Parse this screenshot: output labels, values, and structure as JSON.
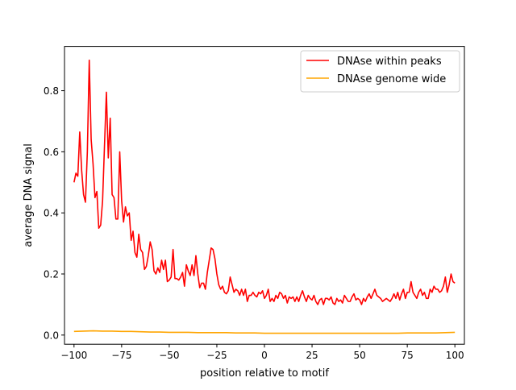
{
  "chart_data": {
    "type": "line",
    "title": "",
    "xlabel": "position relative to motif",
    "ylabel": "average DNA signal",
    "xlim": [
      -105,
      105
    ],
    "ylim": [
      -0.03,
      0.945
    ],
    "xticks": [
      -100,
      -75,
      -50,
      -25,
      0,
      25,
      50,
      75,
      100
    ],
    "xtick_labels": [
      "−100",
      "−75",
      "−50",
      "−25",
      "0",
      "25",
      "50",
      "75",
      "100"
    ],
    "yticks": [
      0.0,
      0.2,
      0.4,
      0.6,
      0.8
    ],
    "ytick_labels": [
      "0.0",
      "0.2",
      "0.4",
      "0.6",
      "0.8"
    ],
    "grid": false,
    "legend_position": "top-right",
    "series": [
      {
        "name": "DNAse within peaks",
        "color": "#ff0000",
        "x": [
          -100,
          -99,
          -98,
          -97,
          -96,
          -95,
          -94,
          -93,
          -92,
          -91,
          -90,
          -89,
          -88,
          -87,
          -86,
          -85,
          -84,
          -83,
          -82,
          -81,
          -80,
          -79,
          -78,
          -77,
          -76,
          -75,
          -74,
          -73,
          -72,
          -71,
          -70,
          -69,
          -68,
          -67,
          -66,
          -65,
          -64,
          -63,
          -62,
          -61,
          -60,
          -59,
          -58,
          -57,
          -56,
          -55,
          -54,
          -53,
          -52,
          -51,
          -50,
          -49,
          -48,
          -47,
          -46,
          -45,
          -44,
          -43,
          -42,
          -41,
          -40,
          -39,
          -38,
          -37,
          -36,
          -35,
          -34,
          -33,
          -32,
          -31,
          -30,
          -29,
          -28,
          -27,
          -26,
          -25,
          -24,
          -23,
          -22,
          -21,
          -20,
          -19,
          -18,
          -17,
          -16,
          -15,
          -14,
          -13,
          -12,
          -11,
          -10,
          -9,
          -8,
          -7,
          -6,
          -5,
          -4,
          -3,
          -2,
          -1,
          0,
          1,
          2,
          3,
          4,
          5,
          6,
          7,
          8,
          9,
          10,
          11,
          12,
          13,
          14,
          15,
          16,
          17,
          18,
          19,
          20,
          21,
          22,
          23,
          24,
          25,
          26,
          27,
          28,
          29,
          30,
          31,
          32,
          33,
          34,
          35,
          36,
          37,
          38,
          39,
          40,
          41,
          42,
          43,
          44,
          45,
          46,
          47,
          48,
          49,
          50,
          51,
          52,
          53,
          54,
          55,
          56,
          57,
          58,
          59,
          60,
          61,
          62,
          63,
          64,
          65,
          66,
          67,
          68,
          69,
          70,
          71,
          72,
          73,
          74,
          75,
          76,
          77,
          78,
          79,
          80,
          81,
          82,
          83,
          84,
          85,
          86,
          87,
          88,
          89,
          90,
          91,
          92,
          93,
          94,
          95,
          96,
          97,
          98,
          99,
          100
        ],
        "values": [
          0.5,
          0.53,
          0.52,
          0.665,
          0.54,
          0.46,
          0.435,
          0.6,
          0.9,
          0.64,
          0.56,
          0.45,
          0.47,
          0.35,
          0.36,
          0.44,
          0.62,
          0.795,
          0.58,
          0.71,
          0.46,
          0.45,
          0.38,
          0.38,
          0.6,
          0.44,
          0.37,
          0.42,
          0.39,
          0.4,
          0.31,
          0.34,
          0.27,
          0.255,
          0.33,
          0.28,
          0.27,
          0.215,
          0.225,
          0.26,
          0.305,
          0.28,
          0.21,
          0.2,
          0.22,
          0.205,
          0.245,
          0.215,
          0.245,
          0.175,
          0.18,
          0.19,
          0.28,
          0.185,
          0.185,
          0.18,
          0.19,
          0.205,
          0.16,
          0.23,
          0.21,
          0.195,
          0.23,
          0.195,
          0.26,
          0.2,
          0.155,
          0.17,
          0.17,
          0.15,
          0.205,
          0.245,
          0.285,
          0.28,
          0.25,
          0.2,
          0.165,
          0.15,
          0.16,
          0.14,
          0.135,
          0.145,
          0.19,
          0.165,
          0.14,
          0.15,
          0.145,
          0.13,
          0.15,
          0.13,
          0.15,
          0.11,
          0.13,
          0.13,
          0.14,
          0.13,
          0.125,
          0.14,
          0.135,
          0.145,
          0.12,
          0.13,
          0.15,
          0.11,
          0.12,
          0.11,
          0.13,
          0.12,
          0.14,
          0.135,
          0.12,
          0.13,
          0.105,
          0.125,
          0.12,
          0.125,
          0.11,
          0.125,
          0.11,
          0.13,
          0.145,
          0.125,
          0.11,
          0.13,
          0.12,
          0.115,
          0.13,
          0.11,
          0.1,
          0.115,
          0.12,
          0.1,
          0.12,
          0.12,
          0.115,
          0.125,
          0.105,
          0.1,
          0.12,
          0.11,
          0.115,
          0.105,
          0.13,
          0.12,
          0.11,
          0.11,
          0.125,
          0.135,
          0.115,
          0.12,
          0.115,
          0.1,
          0.12,
          0.11,
          0.125,
          0.135,
          0.12,
          0.135,
          0.15,
          0.13,
          0.125,
          0.12,
          0.11,
          0.115,
          0.12,
          0.115,
          0.11,
          0.12,
          0.135,
          0.12,
          0.14,
          0.115,
          0.135,
          0.15,
          0.12,
          0.14,
          0.14,
          0.175,
          0.14,
          0.13,
          0.12,
          0.14,
          0.15,
          0.13,
          0.14,
          0.12,
          0.12,
          0.15,
          0.14,
          0.16,
          0.15,
          0.15,
          0.14,
          0.145,
          0.16,
          0.19,
          0.14,
          0.165,
          0.2,
          0.175,
          0.17
        ]
      },
      {
        "name": "DNAse genome wide",
        "color": "#ffa500",
        "x": [
          -100,
          -95,
          -90,
          -85,
          -80,
          -75,
          -70,
          -65,
          -60,
          -55,
          -50,
          -45,
          -40,
          -35,
          -30,
          -25,
          -20,
          -15,
          -10,
          -5,
          0,
          5,
          10,
          15,
          20,
          25,
          30,
          35,
          40,
          45,
          50,
          55,
          60,
          65,
          70,
          75,
          80,
          85,
          90,
          95,
          100
        ],
        "values": [
          0.012,
          0.013,
          0.014,
          0.013,
          0.013,
          0.012,
          0.012,
          0.011,
          0.01,
          0.01,
          0.009,
          0.009,
          0.009,
          0.008,
          0.008,
          0.008,
          0.008,
          0.007,
          0.007,
          0.007,
          0.006,
          0.006,
          0.006,
          0.006,
          0.006,
          0.006,
          0.006,
          0.006,
          0.006,
          0.006,
          0.006,
          0.006,
          0.006,
          0.006,
          0.006,
          0.007,
          0.007,
          0.007,
          0.007,
          0.008,
          0.009
        ]
      }
    ]
  }
}
